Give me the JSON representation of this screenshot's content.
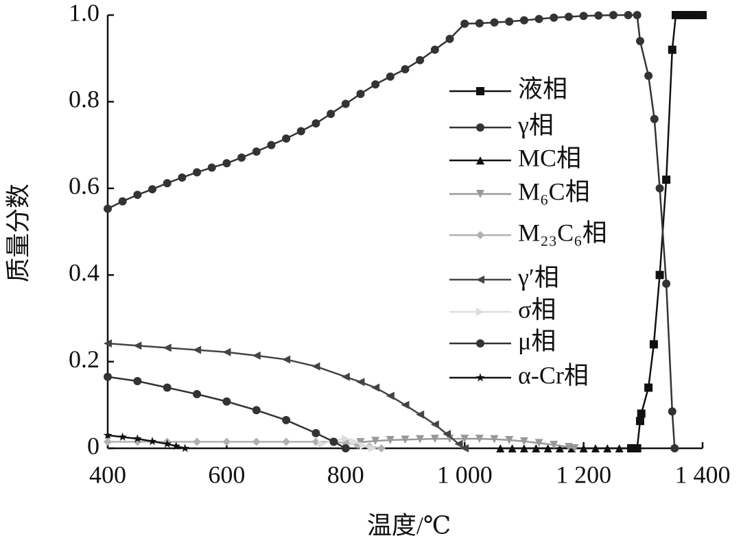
{
  "chart_data": {
    "type": "line",
    "x_label": "温度/℃",
    "y_label": "质量分数",
    "xlim": [
      400,
      1400
    ],
    "ylim": [
      0,
      1
    ],
    "xticks": [
      400,
      600,
      800,
      {
        "value": 1000,
        "label": "1 000"
      },
      {
        "value": 1200,
        "label": "1 200"
      },
      {
        "value": 1400,
        "label": "1 400"
      }
    ],
    "yticks": [
      0,
      0.2,
      0.4,
      0.6,
      0.8,
      {
        "value": 1,
        "label": "1.0"
      }
    ],
    "grid": false,
    "legend": "upper right",
    "series": [
      {
        "name": "液相",
        "color": "#111111",
        "marker": "square",
        "x": [
          1280,
          1290,
          1295,
          1297,
          1309,
          1318,
          1328,
          1339,
          1349,
          1355,
          1360,
          1365,
          1370,
          1375,
          1380,
          1385,
          1390,
          1395,
          1400
        ],
        "values": [
          0,
          0,
          0.063,
          0.08,
          0.14,
          0.24,
          0.4,
          0.62,
          0.92,
          1,
          1,
          1,
          1,
          1,
          1,
          1,
          1,
          1,
          1
        ]
      },
      {
        "name": "γ相",
        "color": "#333333",
        "marker": "circle",
        "x": [
          400,
          425,
          450,
          475,
          500,
          525,
          550,
          575,
          600,
          625,
          650,
          675,
          700,
          725,
          750,
          775,
          800,
          825,
          850,
          875,
          900,
          925,
          950,
          975,
          1000,
          1025,
          1050,
          1075,
          1100,
          1125,
          1150,
          1175,
          1200,
          1225,
          1250,
          1275,
          1290,
          1295,
          1309,
          1319,
          1328,
          1339,
          1349,
          1353
        ],
        "values": [
          0.553,
          0.57,
          0.585,
          0.598,
          0.612,
          0.625,
          0.637,
          0.648,
          0.658,
          0.671,
          0.685,
          0.7,
          0.715,
          0.732,
          0.75,
          0.772,
          0.795,
          0.818,
          0.84,
          0.858,
          0.875,
          0.896,
          0.92,
          0.945,
          0.98,
          0.981,
          0.983,
          0.985,
          0.988,
          0.991,
          0.994,
          0.996,
          0.998,
          0.999,
          1,
          1,
          1,
          0.94,
          0.86,
          0.76,
          0.6,
          0.38,
          0.085,
          0
        ]
      },
      {
        "name": "MC相",
        "color": "#111111",
        "marker": "triangle-up",
        "x": [
          1060,
          1080,
          1100,
          1120,
          1140,
          1160,
          1180,
          1200,
          1220,
          1240,
          1260,
          1280,
          1290
        ],
        "values": [
          0,
          0,
          0,
          0,
          0,
          0,
          0,
          0,
          0,
          0,
          0,
          0,
          0
        ]
      },
      {
        "name": "M₆C相",
        "color": "#999999",
        "marker": "triangle-down",
        "x": [
          800,
          825,
          850,
          875,
          900,
          925,
          950,
          975,
          1000,
          1025,
          1050,
          1075,
          1100,
          1125,
          1150,
          1175,
          1185
        ],
        "values": [
          0.01,
          0.014,
          0.017,
          0.019,
          0.02,
          0.021,
          0.022,
          0.022,
          0.022,
          0.022,
          0.021,
          0.019,
          0.016,
          0.012,
          0.008,
          0.003,
          0
        ]
      },
      {
        "name": "M₂₃C₆相",
        "color": "#b0b0b0",
        "marker": "diamond",
        "x": [
          400,
          450,
          500,
          550,
          600,
          650,
          700,
          750,
          780,
          800,
          820,
          840,
          860
        ],
        "values": [
          0.015,
          0.015,
          0.015,
          0.015,
          0.015,
          0.015,
          0.015,
          0.015,
          0.015,
          0.012,
          0.008,
          0.004,
          0
        ]
      },
      {
        "name": "γ′相",
        "color": "#444444",
        "marker": "triangle-left",
        "x": [
          400,
          450,
          500,
          550,
          600,
          650,
          700,
          750,
          800,
          825,
          850,
          875,
          900,
          925,
          950,
          970,
          990,
          1000
        ],
        "values": [
          0.242,
          0.237,
          0.232,
          0.227,
          0.222,
          0.214,
          0.205,
          0.189,
          0.165,
          0.153,
          0.14,
          0.121,
          0.1,
          0.078,
          0.055,
          0.033,
          0.01,
          0
        ]
      },
      {
        "name": "σ相",
        "color": "#dddddd",
        "marker": "triangle-right",
        "x": [
          760,
          780,
          800,
          815,
          830,
          845
        ],
        "values": [
          0.01,
          0.018,
          0.022,
          0.015,
          0.006,
          0
        ]
      },
      {
        "name": "μ相",
        "color": "#333333",
        "marker": "circle",
        "x": [
          400,
          450,
          500,
          550,
          600,
          650,
          700,
          750,
          780,
          800
        ],
        "values": [
          0.165,
          0.155,
          0.14,
          0.125,
          0.108,
          0.088,
          0.065,
          0.035,
          0.015,
          0
        ]
      },
      {
        "name": "α-Cr相",
        "color": "#111111",
        "marker": "star",
        "x": [
          400,
          425,
          450,
          475,
          500,
          515,
          530
        ],
        "values": [
          0.03,
          0.026,
          0.022,
          0.016,
          0.01,
          0.005,
          0
        ]
      }
    ]
  }
}
